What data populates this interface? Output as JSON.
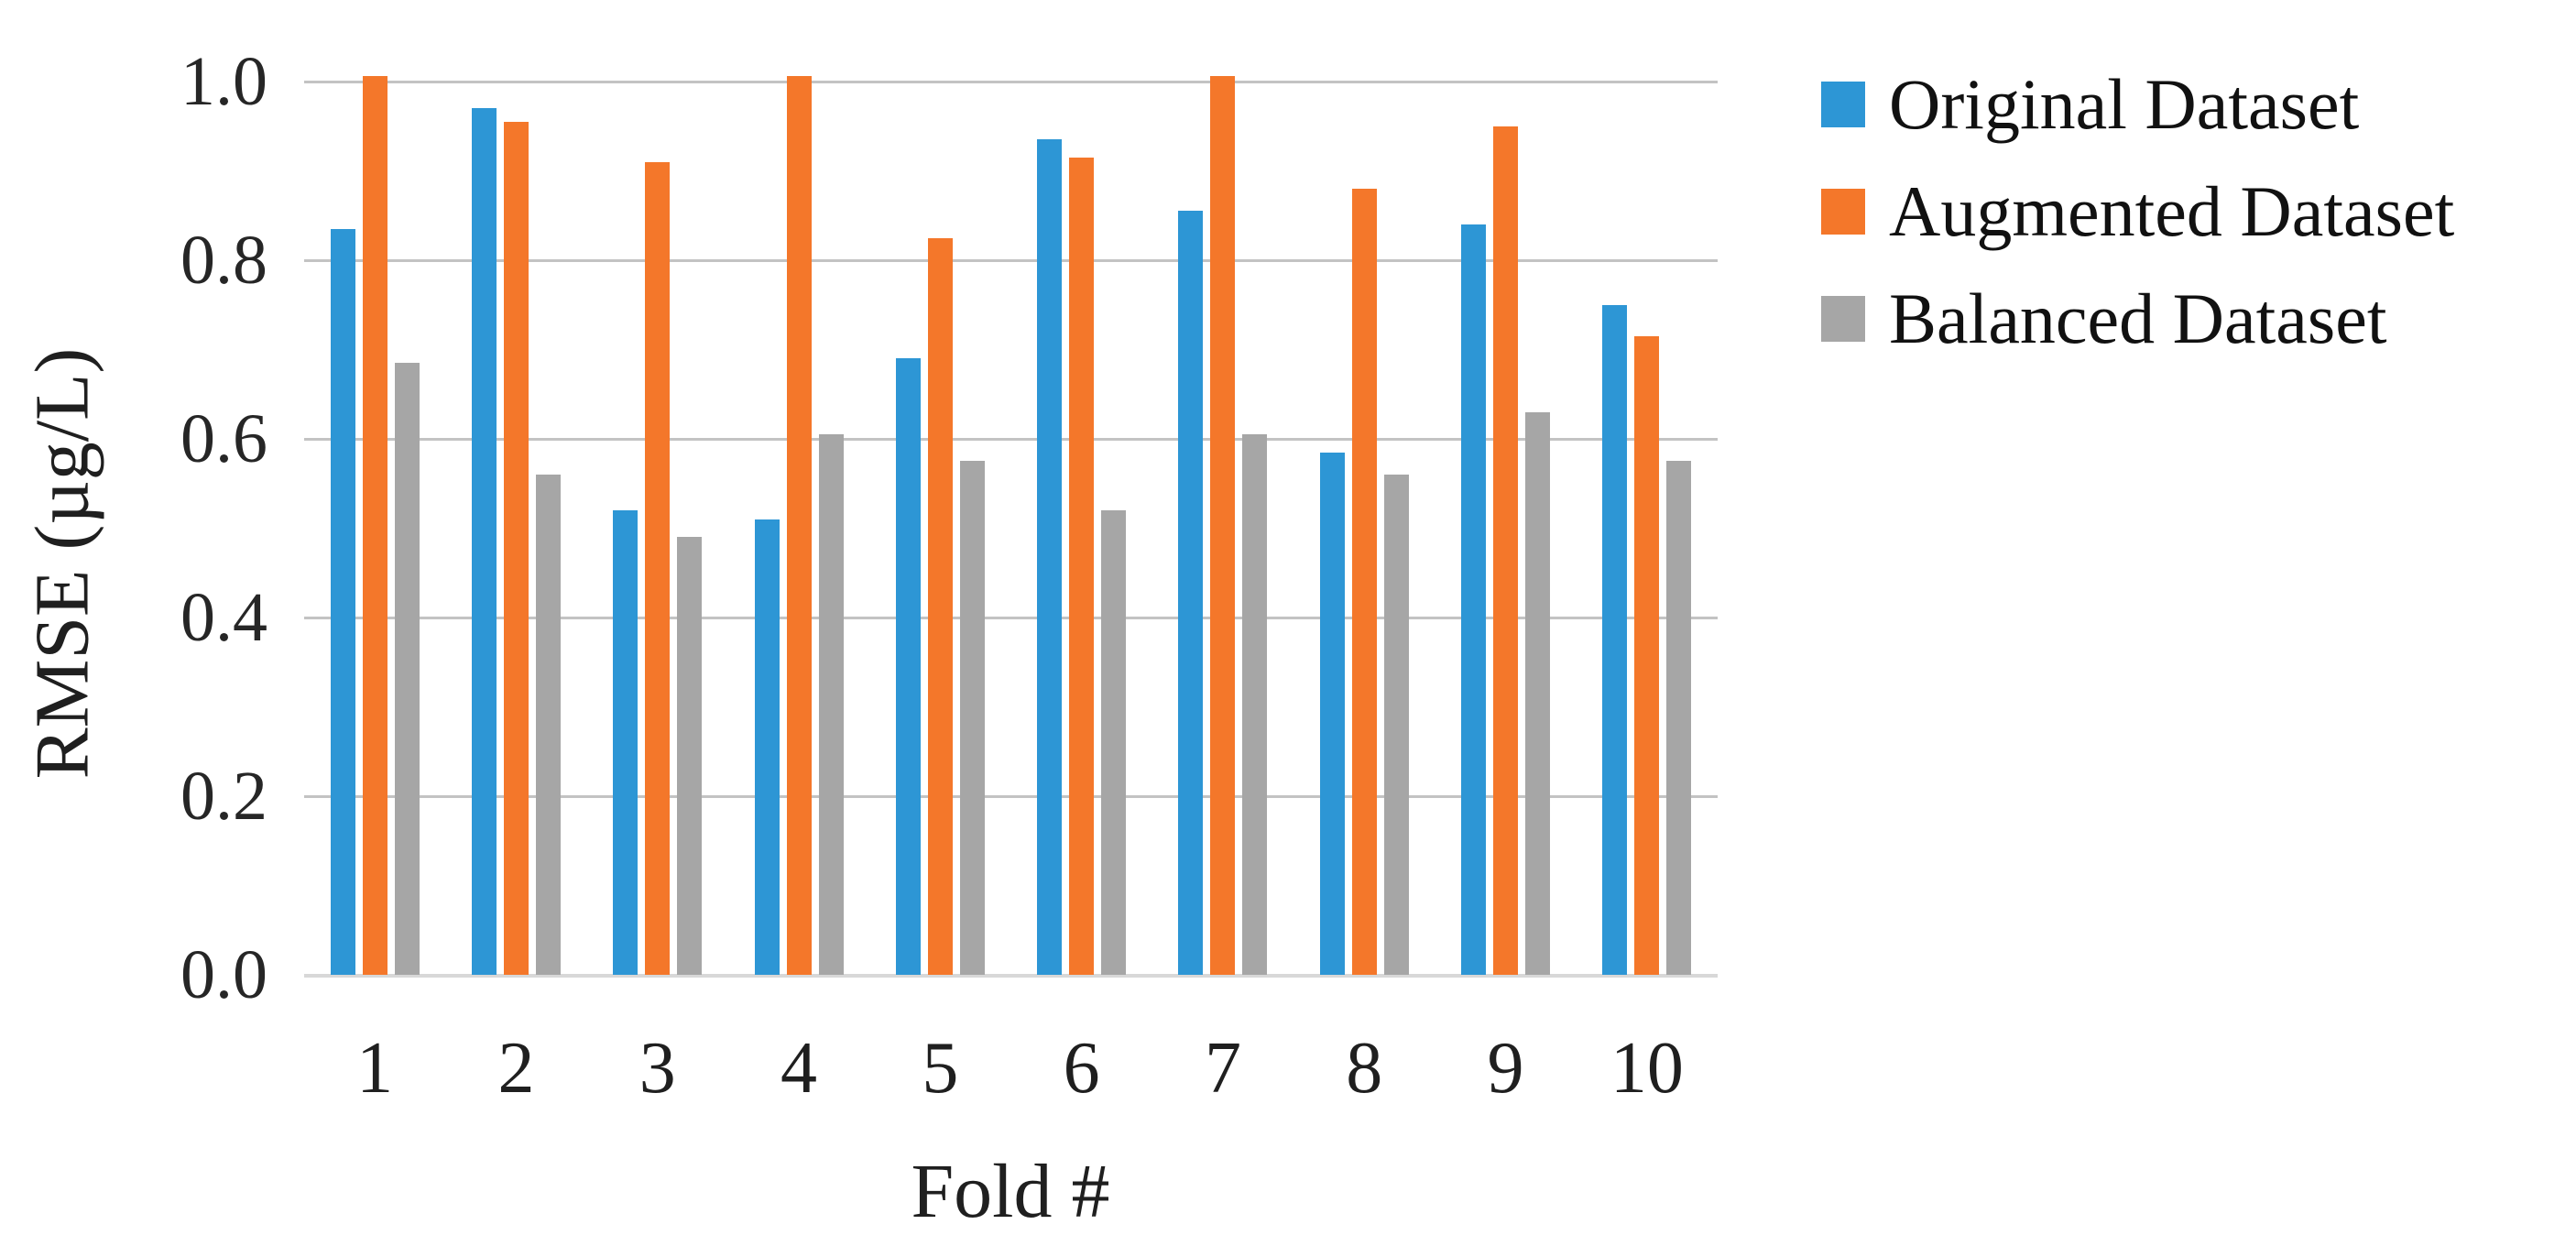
{
  "figure": {
    "background": "#ffffff",
    "text_color": "#1f1f1f",
    "gridline_color": "#c3c3c3",
    "baseline_color": "#d8d8d8"
  },
  "chart_data": {
    "type": "bar",
    "title": "",
    "xlabel": "Fold #",
    "ylabel": "RMSE (µg/L)",
    "categories": [
      "1",
      "2",
      "3",
      "4",
      "5",
      "6",
      "7",
      "8",
      "9",
      "10"
    ],
    "series": [
      {
        "name": "Original Dataset",
        "color": "#2d96d5",
        "values": [
          0.835,
          0.97,
          0.52,
          0.51,
          0.69,
          0.935,
          0.855,
          0.585,
          0.84,
          0.75
        ]
      },
      {
        "name": "Augmented Dataset",
        "color": "#f4772a",
        "values": [
          1.0,
          0.955,
          0.91,
          1.0,
          0.825,
          0.915,
          1.0,
          0.88,
          0.95,
          0.715
        ]
      },
      {
        "name": "Balanced Dataset",
        "color": "#a6a6a6",
        "values": [
          0.685,
          0.56,
          0.49,
          0.605,
          0.575,
          0.52,
          0.605,
          0.56,
          0.63,
          0.575
        ]
      }
    ],
    "ylim": [
      0.0,
      1.0
    ],
    "y_ticks": {
      "values": [
        1.0,
        0.8,
        0.6,
        0.4,
        0.2,
        0.0
      ],
      "labels": [
        "1.0",
        "0.8",
        "0.6",
        "0.4",
        "0.2",
        "0.0"
      ]
    },
    "grid": "horizontal-major",
    "legend_position": "top-right"
  }
}
